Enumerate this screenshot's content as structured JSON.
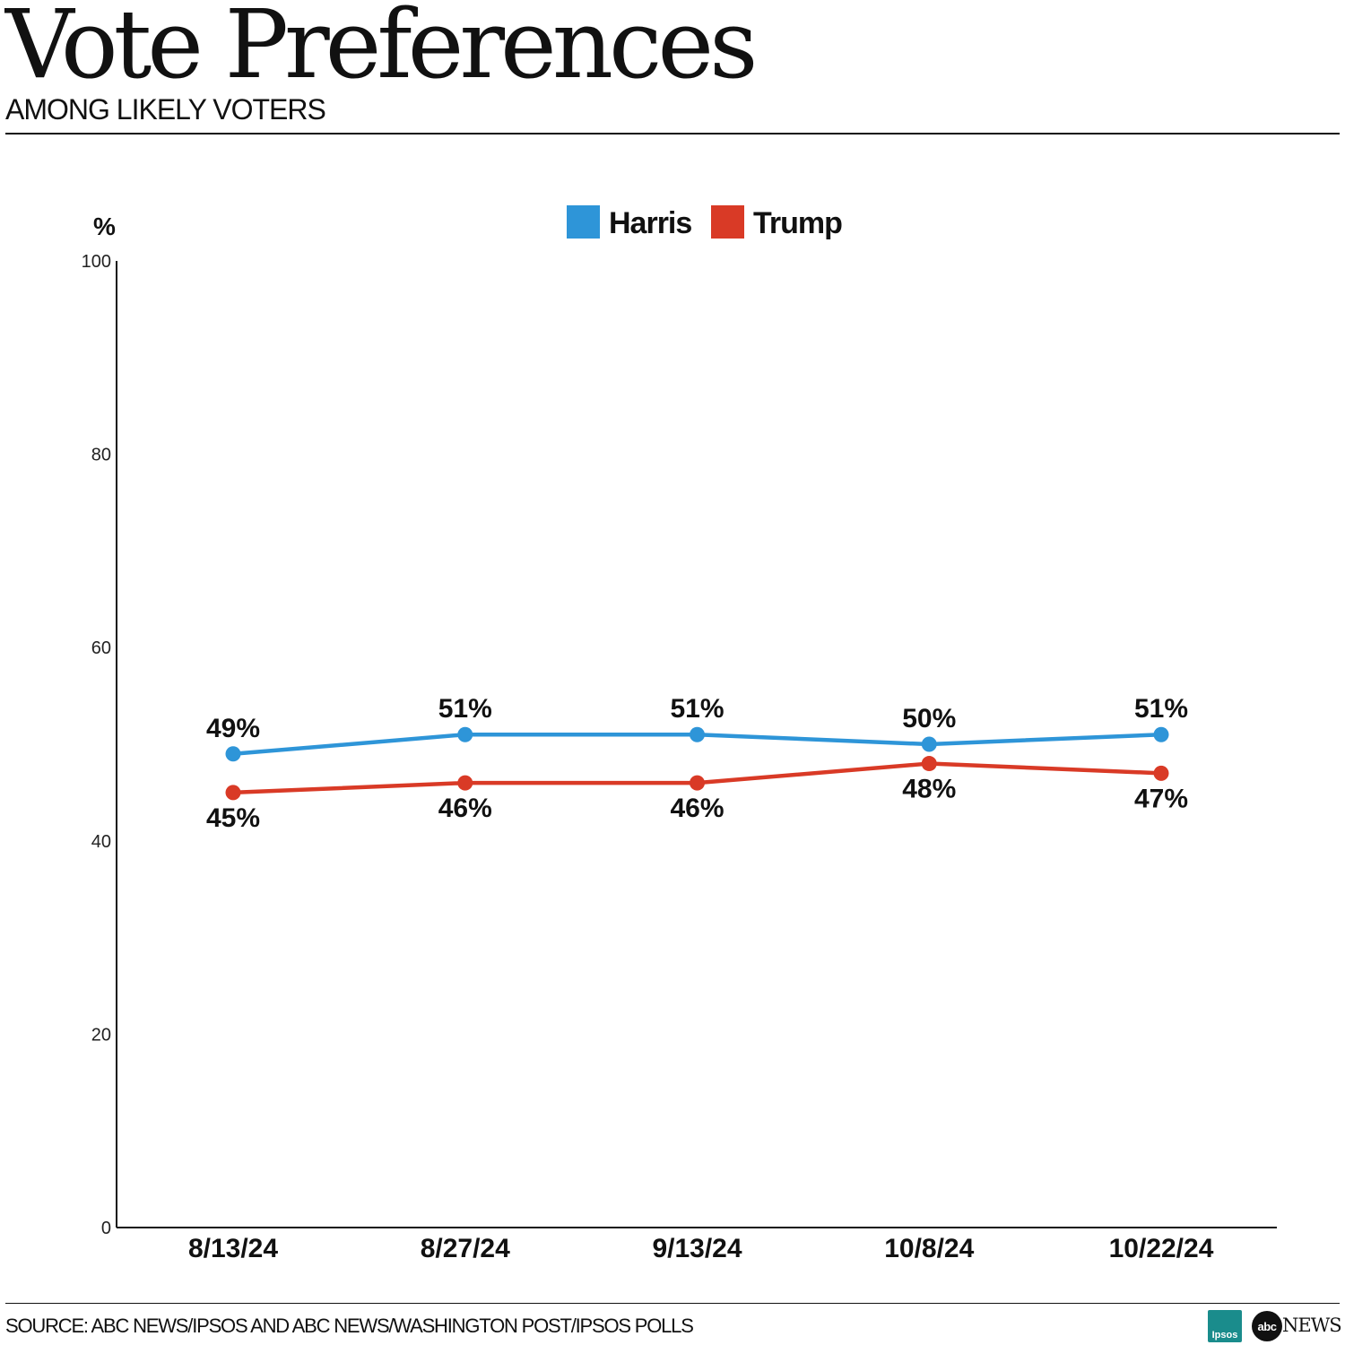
{
  "header": {
    "title": "Vote Preferences",
    "subtitle": "AMONG LIKELY VOTERS"
  },
  "footer": {
    "source": "SOURCE: ABC NEWS/IPSOS AND ABC NEWS/WASHINGTON POST/IPSOS POLLS",
    "logos": [
      {
        "name": "ipsos-logo",
        "text": "Ipsos",
        "color": "#1a8c8c"
      },
      {
        "name": "abc-news-logo",
        "mark": "abc",
        "text": "NEWS"
      }
    ]
  },
  "chart_data": {
    "type": "line",
    "title": "Vote Preferences",
    "subtitle": "AMONG LIKELY VOTERS",
    "ylabel": "%",
    "ylim": [
      0,
      100
    ],
    "yticks": [
      0,
      20,
      40,
      60,
      80,
      100
    ],
    "categories": [
      "8/13/24",
      "8/27/24",
      "9/13/24",
      "10/8/24",
      "10/22/24"
    ],
    "legend_position": "top-center",
    "grid": false,
    "series": [
      {
        "name": "Harris",
        "color": "#2e95d8",
        "values": [
          49,
          51,
          51,
          50,
          51
        ],
        "labels": [
          "49%",
          "51%",
          "51%",
          "50%",
          "51%"
        ],
        "label_position": "above"
      },
      {
        "name": "Trump",
        "color": "#d93a26",
        "values": [
          45,
          46,
          46,
          48,
          47
        ],
        "labels": [
          "45%",
          "46%",
          "46%",
          "48%",
          "47%"
        ],
        "label_position": "below"
      }
    ]
  }
}
